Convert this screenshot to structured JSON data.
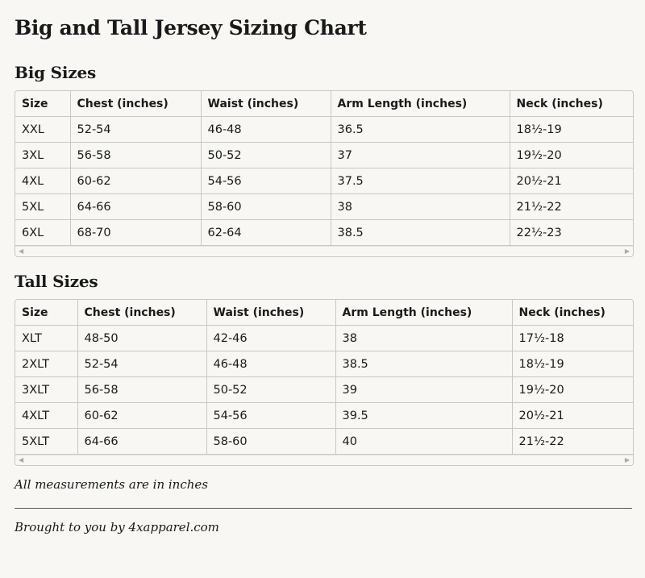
{
  "title": "Big and Tall Jersey Sizing Chart",
  "big": {
    "heading": "Big Sizes",
    "headers": [
      "Size",
      "Chest (inches)",
      "Waist (inches)",
      "Arm Length (inches)",
      "Neck (inches)"
    ],
    "rows": [
      [
        "XXL",
        "52-54",
        "46-48",
        "36.5",
        "18½-19"
      ],
      [
        "3XL",
        "56-58",
        "50-52",
        "37",
        "19½-20"
      ],
      [
        "4XL",
        "60-62",
        "54-56",
        "37.5",
        "20½-21"
      ],
      [
        "5XL",
        "64-66",
        "58-60",
        "38",
        "21½-22"
      ],
      [
        "6XL",
        "68-70",
        "62-64",
        "38.5",
        "22½-23"
      ]
    ]
  },
  "tall": {
    "heading": "Tall Sizes",
    "headers": [
      "Size",
      "Chest (inches)",
      "Waist (inches)",
      "Arm Length (inches)",
      "Neck (inches)"
    ],
    "rows": [
      [
        "XLT",
        "48-50",
        "42-46",
        "38",
        "17½-18"
      ],
      [
        "2XLT",
        "52-54",
        "46-48",
        "38.5",
        "18½-19"
      ],
      [
        "3XLT",
        "56-58",
        "50-52",
        "39",
        "19½-20"
      ],
      [
        "4XLT",
        "60-62",
        "54-56",
        "39.5",
        "20½-21"
      ],
      [
        "5XLT",
        "64-66",
        "58-60",
        "40",
        "21½-22"
      ]
    ]
  },
  "note": "All measurements are in inches",
  "credit": "Brought to you by 4xapparel.com"
}
